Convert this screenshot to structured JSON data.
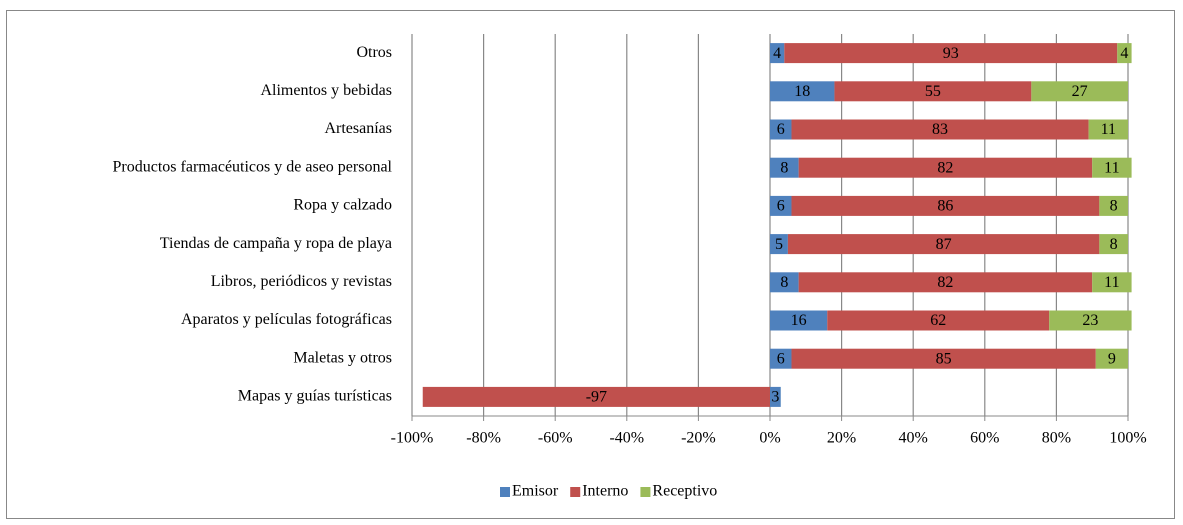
{
  "chart_data": {
    "type": "stacked-bar-horizontal",
    "categories": [
      "Otros",
      "Alimentos y bebidas",
      "Artesanías",
      "Productos farmacéuticos y de aseo personal",
      "Ropa y calzado",
      "Tiendas de campaña y ropa de playa",
      "Libros, periódicos y revistas",
      "Aparatos y películas fotográficas",
      "Maletas y otros",
      "Mapas y guías turísticas"
    ],
    "series": [
      {
        "name": "Emisor",
        "color": "#4f81bd",
        "values": [
          4,
          18,
          6,
          8,
          6,
          5,
          8,
          16,
          6,
          3
        ]
      },
      {
        "name": "Interno",
        "color": "#c0504d",
        "values": [
          93,
          55,
          83,
          82,
          86,
          87,
          82,
          62,
          85,
          -97
        ]
      },
      {
        "name": "Receptivo",
        "color": "#9bbb59",
        "values": [
          4,
          27,
          11,
          11,
          8,
          8,
          11,
          23,
          9,
          null
        ]
      }
    ],
    "xlim": [
      -100,
      100
    ],
    "xticks": [
      {
        "value": -100,
        "label": "-100%"
      },
      {
        "value": -80,
        "label": "-80%"
      },
      {
        "value": -60,
        "label": "-60%"
      },
      {
        "value": -40,
        "label": "-40%"
      },
      {
        "value": -20,
        "label": "-20%"
      },
      {
        "value": 0,
        "label": "0%"
      },
      {
        "value": 20,
        "label": "20%"
      },
      {
        "value": 40,
        "label": "40%"
      },
      {
        "value": 60,
        "label": "60%"
      },
      {
        "value": 80,
        "label": "80%"
      },
      {
        "value": 100,
        "label": "100%"
      }
    ],
    "grid": true,
    "legend": "bottom"
  }
}
